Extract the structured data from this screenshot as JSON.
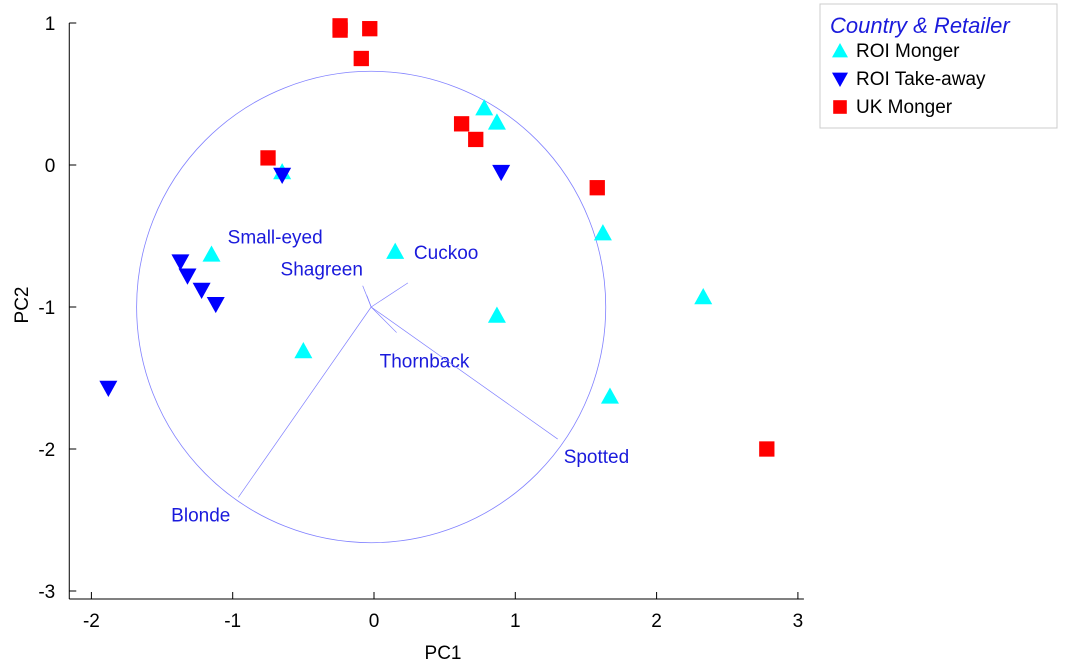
{
  "chart_data": {
    "type": "scatter",
    "xlabel": "PC1",
    "ylabel": "PC2",
    "xlim": [
      -2.1,
      3.0
    ],
    "ylim": [
      -3.0,
      1.0
    ],
    "xticks": [
      -2,
      -1,
      0,
      1,
      2,
      3
    ],
    "yticks": [
      1,
      0,
      -1,
      -2,
      -3
    ],
    "legend": {
      "title": "Country & Retailer",
      "placement": "top-right"
    },
    "series": [
      {
        "name": "ROI Monger",
        "marker": "triangle-up",
        "color": "#00ffff",
        "points": [
          {
            "x": 0.78,
            "y": 0.4
          },
          {
            "x": 0.87,
            "y": 0.3
          },
          {
            "x": -0.65,
            "y": -0.05
          },
          {
            "x": 1.62,
            "y": -0.48
          },
          {
            "x": -1.15,
            "y": -0.63
          },
          {
            "x": 0.15,
            "y": -0.61
          },
          {
            "x": 2.33,
            "y": -0.93
          },
          {
            "x": 0.87,
            "y": -1.06
          },
          {
            "x": -0.5,
            "y": -1.31
          },
          {
            "x": 1.67,
            "y": -1.63
          }
        ]
      },
      {
        "name": "ROI Take-away",
        "marker": "triangle-down",
        "color": "#0000ff",
        "points": [
          {
            "x": -0.65,
            "y": -0.07
          },
          {
            "x": 0.9,
            "y": -0.05
          },
          {
            "x": -1.37,
            "y": -0.68
          },
          {
            "x": -1.32,
            "y": -0.78
          },
          {
            "x": -1.22,
            "y": -0.88
          },
          {
            "x": -1.12,
            "y": -0.98
          },
          {
            "x": -1.88,
            "y": -1.57
          }
        ]
      },
      {
        "name": "UK Monger",
        "marker": "square",
        "color": "#ff0000",
        "points": [
          {
            "x": -0.24,
            "y": 0.98
          },
          {
            "x": -0.24,
            "y": 0.95
          },
          {
            "x": -0.03,
            "y": 0.96
          },
          {
            "x": -0.09,
            "y": 0.75
          },
          {
            "x": 0.62,
            "y": 0.29
          },
          {
            "x": 0.72,
            "y": 0.18
          },
          {
            "x": -0.75,
            "y": 0.05
          },
          {
            "x": 1.58,
            "y": -0.16
          },
          {
            "x": 2.78,
            "y": -2.0
          }
        ]
      }
    ],
    "circle": {
      "center": [
        -0.02,
        -1.0
      ],
      "radius": 1.66,
      "color": "#8080ff"
    },
    "vectors": [
      {
        "name": "Small-eyed",
        "x": -0.08,
        "y": -0.85
      },
      {
        "name": "Shagreen",
        "x": -0.05,
        "y": -0.92
      },
      {
        "name": "Cuckoo",
        "x": 0.24,
        "y": -0.83
      },
      {
        "name": "Thornback",
        "x": 0.16,
        "y": -1.18
      },
      {
        "name": "Spotted",
        "x": 1.3,
        "y": -1.93
      },
      {
        "name": "Blonde",
        "x": -0.96,
        "y": -2.34
      }
    ]
  }
}
